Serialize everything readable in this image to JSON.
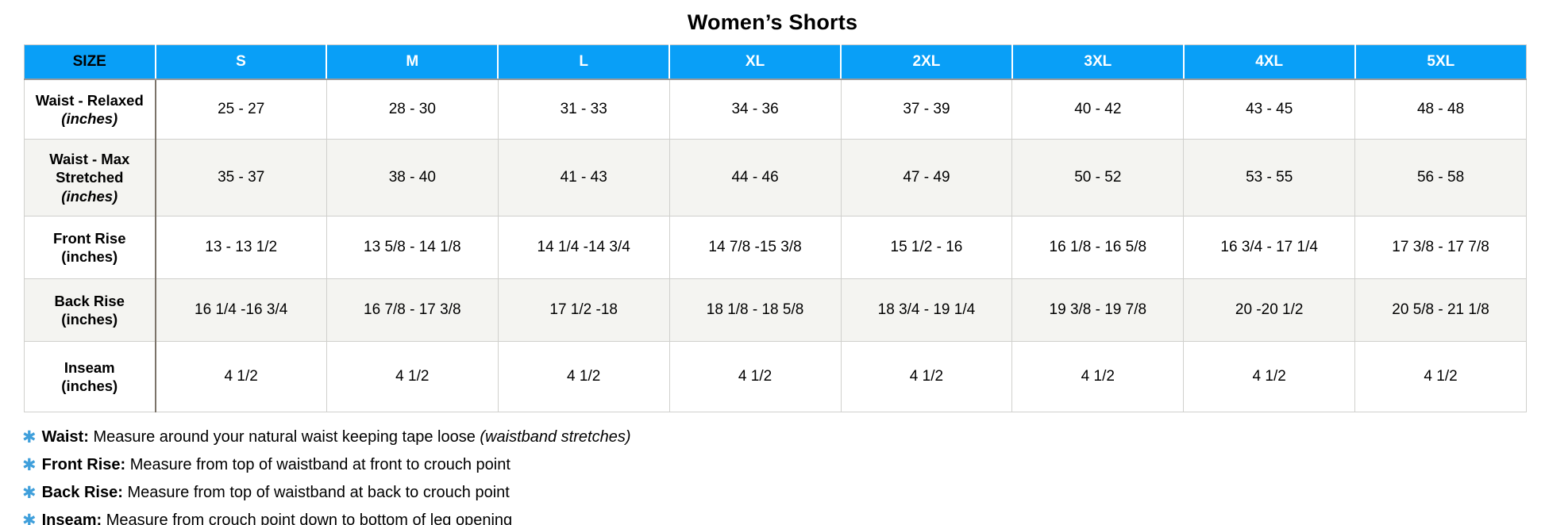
{
  "title": "Women’s Shorts",
  "colors": {
    "header_bg": "#099FF7",
    "header_text": "#FFFFFF",
    "size_header_text": "#000000",
    "stripe_bg": "#F4F4F1",
    "label_divider": "#7B7369",
    "note_icon_color": "#3F9FDB"
  },
  "notes_icon": "✱",
  "table": {
    "columns": [
      "SIZE",
      "S",
      "M",
      "L",
      "XL",
      "2XL",
      "3XL",
      "4XL",
      "5XL"
    ],
    "rows": [
      {
        "label": "Waist - Relaxed",
        "sublabel": "(inches)",
        "values": [
          "25 - 27",
          "28 - 30",
          "31 - 33",
          "34 - 36",
          "37 - 39",
          "40 - 42",
          "43 - 45",
          "48 - 48"
        ]
      },
      {
        "label": "Waist - Max Stretched",
        "sublabel": "(inches)",
        "values": [
          "35 - 37",
          "38 - 40",
          "41 - 43",
          "44 - 46",
          "47 - 49",
          "50 - 52",
          "53 - 55",
          "56 - 58"
        ]
      },
      {
        "label": "Front Rise",
        "sublabel": "(inches)",
        "values": [
          "13 - 13 1/2",
          "13 5/8 - 14 1/8",
          "14 1/4 -14 3/4",
          "14 7/8 -15 3/8",
          "15 1/2 - 16",
          "16 1/8 - 16 5/8",
          "16 3/4 - 17 1/4",
          "17 3/8 - 17 7/8"
        ]
      },
      {
        "label": "Back Rise",
        "sublabel": "(inches)",
        "values": [
          "16 1/4 -16 3/4",
          "16 7/8 - 17 3/8",
          "17 1/2 -18",
          "18 1/8 - 18 5/8",
          "18 3/4 - 19 1/4",
          "19 3/8 - 19 7/8",
          "20 -20 1/2",
          "20 5/8 - 21 1/8"
        ]
      },
      {
        "label": "Inseam",
        "sublabel": "(inches)",
        "values": [
          "4 1/2",
          "4 1/2",
          "4 1/2",
          "4 1/2",
          "4 1/2",
          "4 1/2",
          "4 1/2",
          "4 1/2"
        ]
      }
    ]
  },
  "notes": [
    {
      "term": "Waist:",
      "text": "Measure around your natural waist keeping tape loose",
      "italic": "(waistband stretches)"
    },
    {
      "term": "Front Rise:",
      "text": "Measure from top of waistband at front to crouch point",
      "italic": ""
    },
    {
      "term": "Back Rise:",
      "text": "Measure from top of waistband at back to crouch point",
      "italic": ""
    },
    {
      "term": "Inseam:",
      "text": "Measure from crouch point down to bottom of leg opening",
      "italic": ""
    }
  ]
}
